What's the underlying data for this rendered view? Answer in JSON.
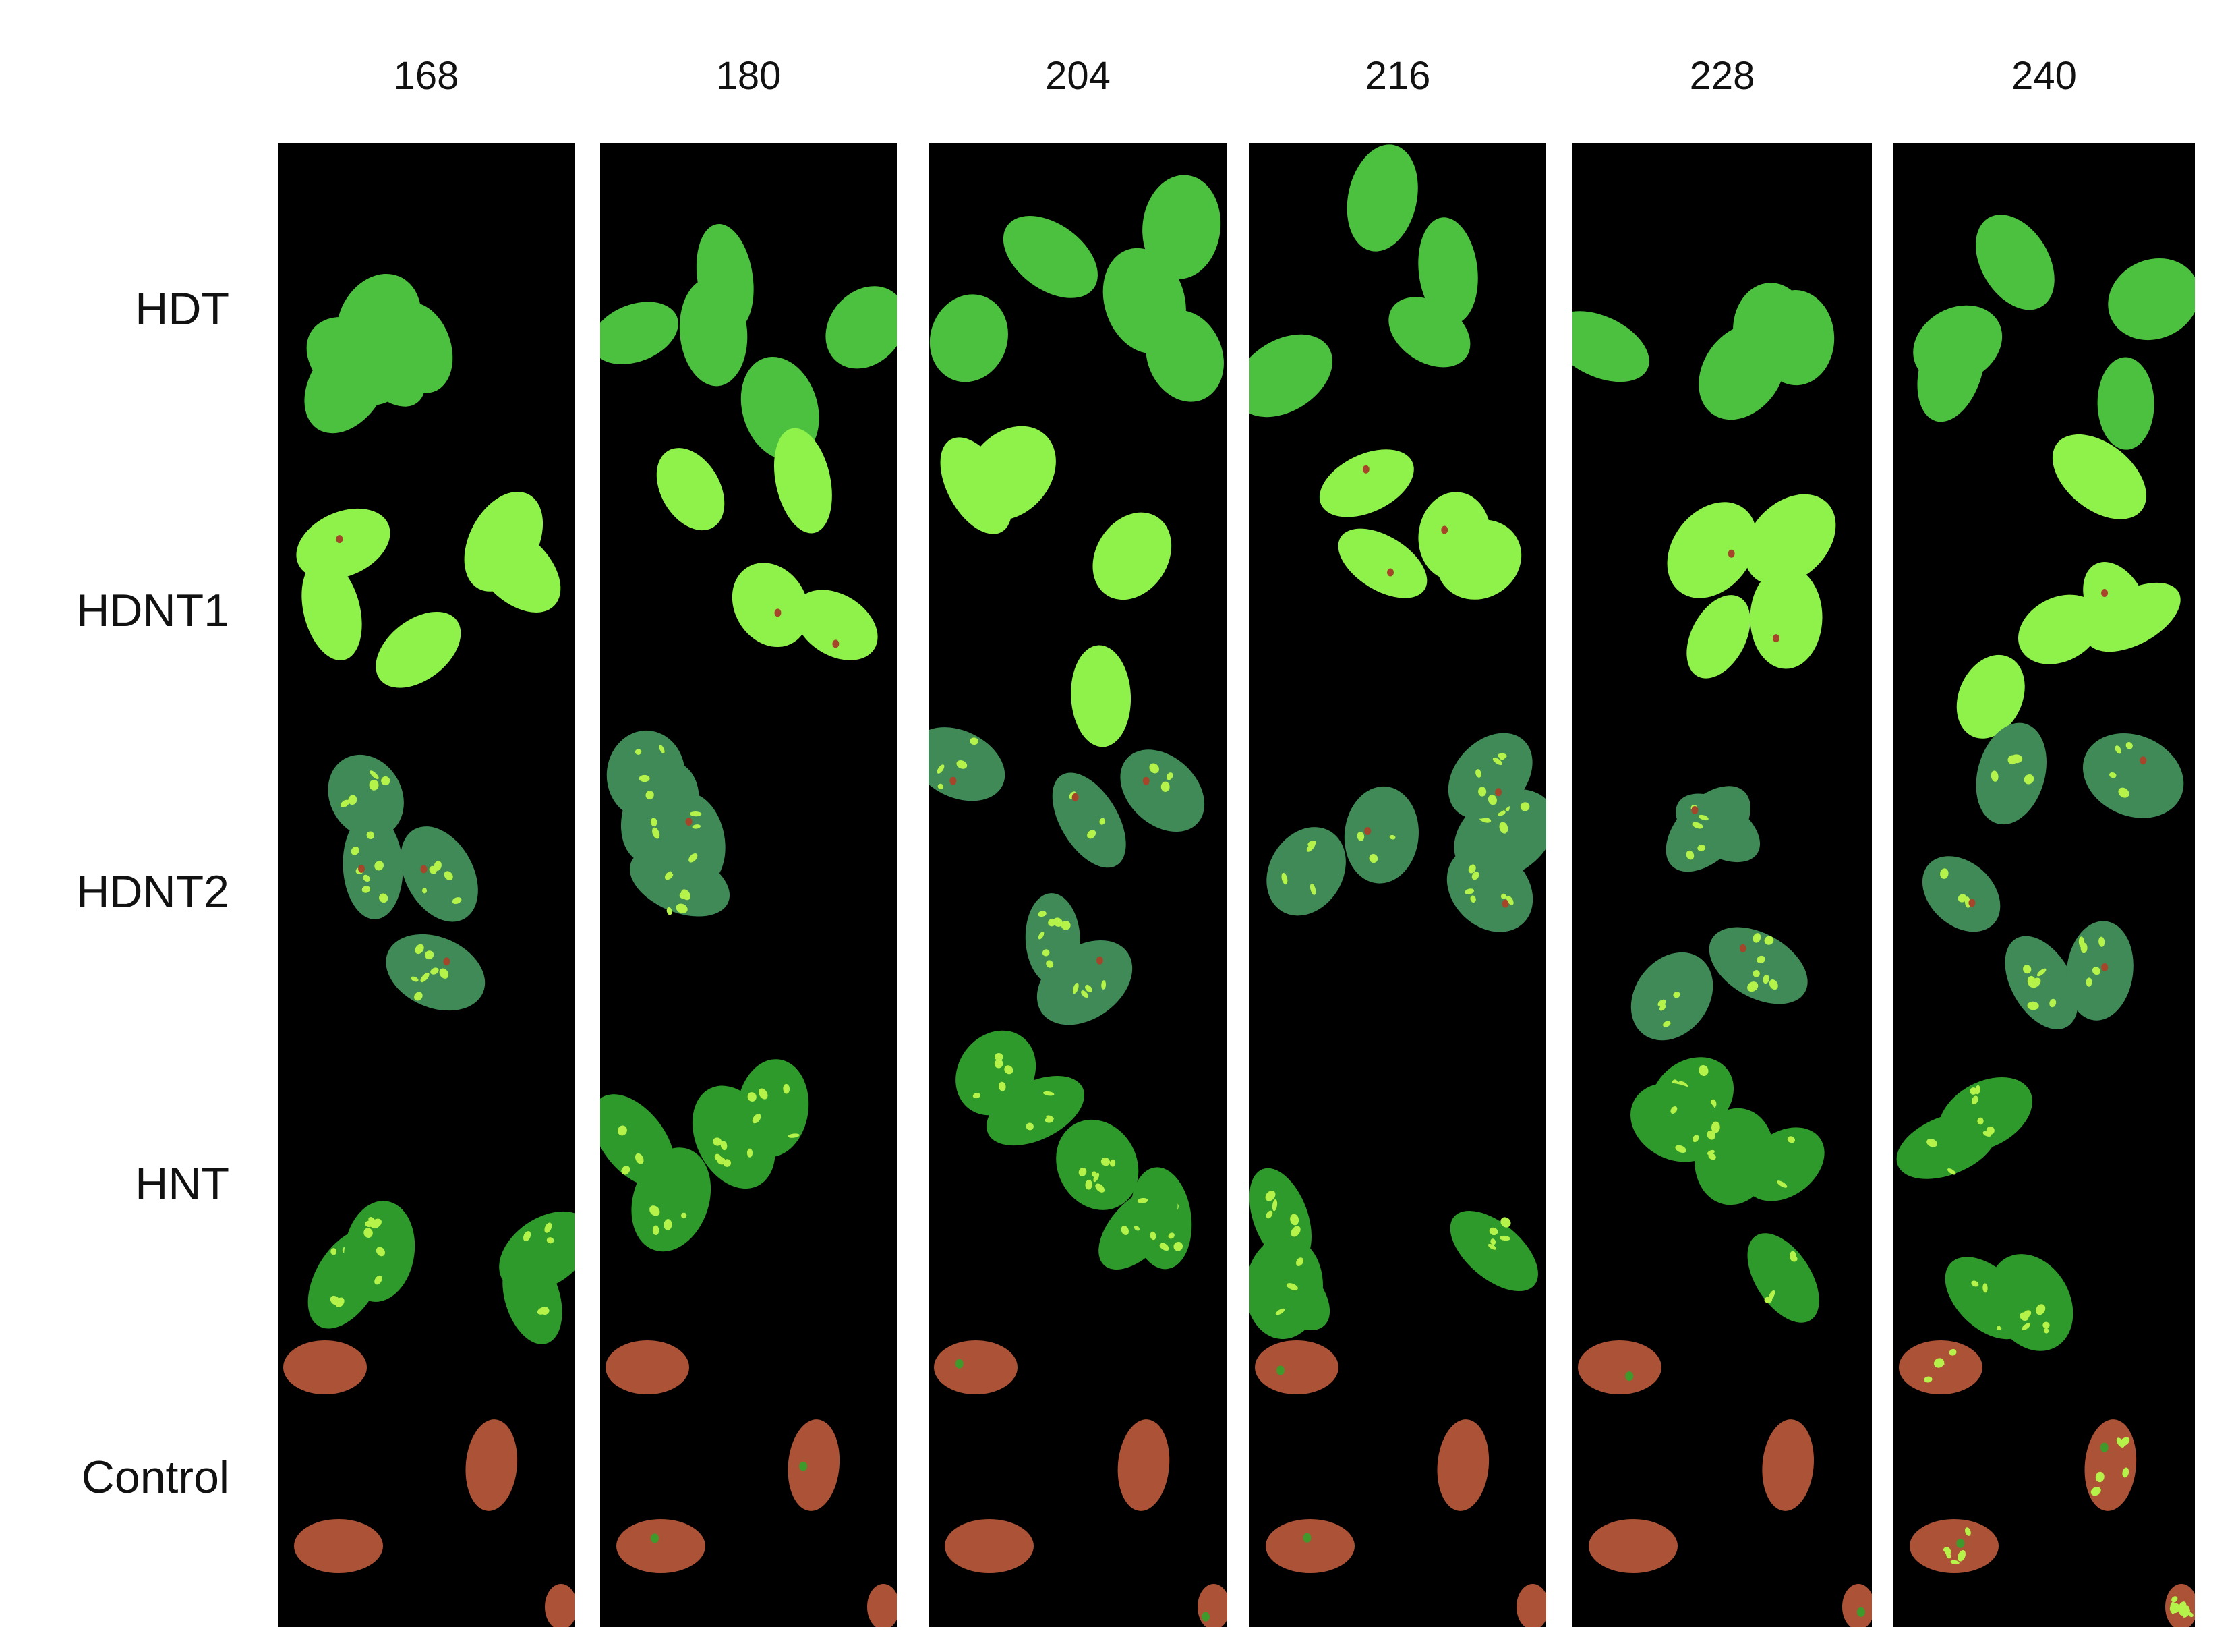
{
  "columns": [
    "168",
    "180",
    "204",
    "216",
    "228",
    "240"
  ],
  "rows": [
    "HDT",
    "HDNT1",
    "HDNT2",
    "HNT",
    "Control"
  ],
  "colors": {
    "HDT": "#4cc13f",
    "HDNT1": "#8ff24a",
    "HDNT2": "#3f8a57",
    "HNT": "#2f9a2c",
    "Control": "#ab5237",
    "speckle": "#b6f34a",
    "damage": "#a5452a",
    "background": "#000000"
  }
}
